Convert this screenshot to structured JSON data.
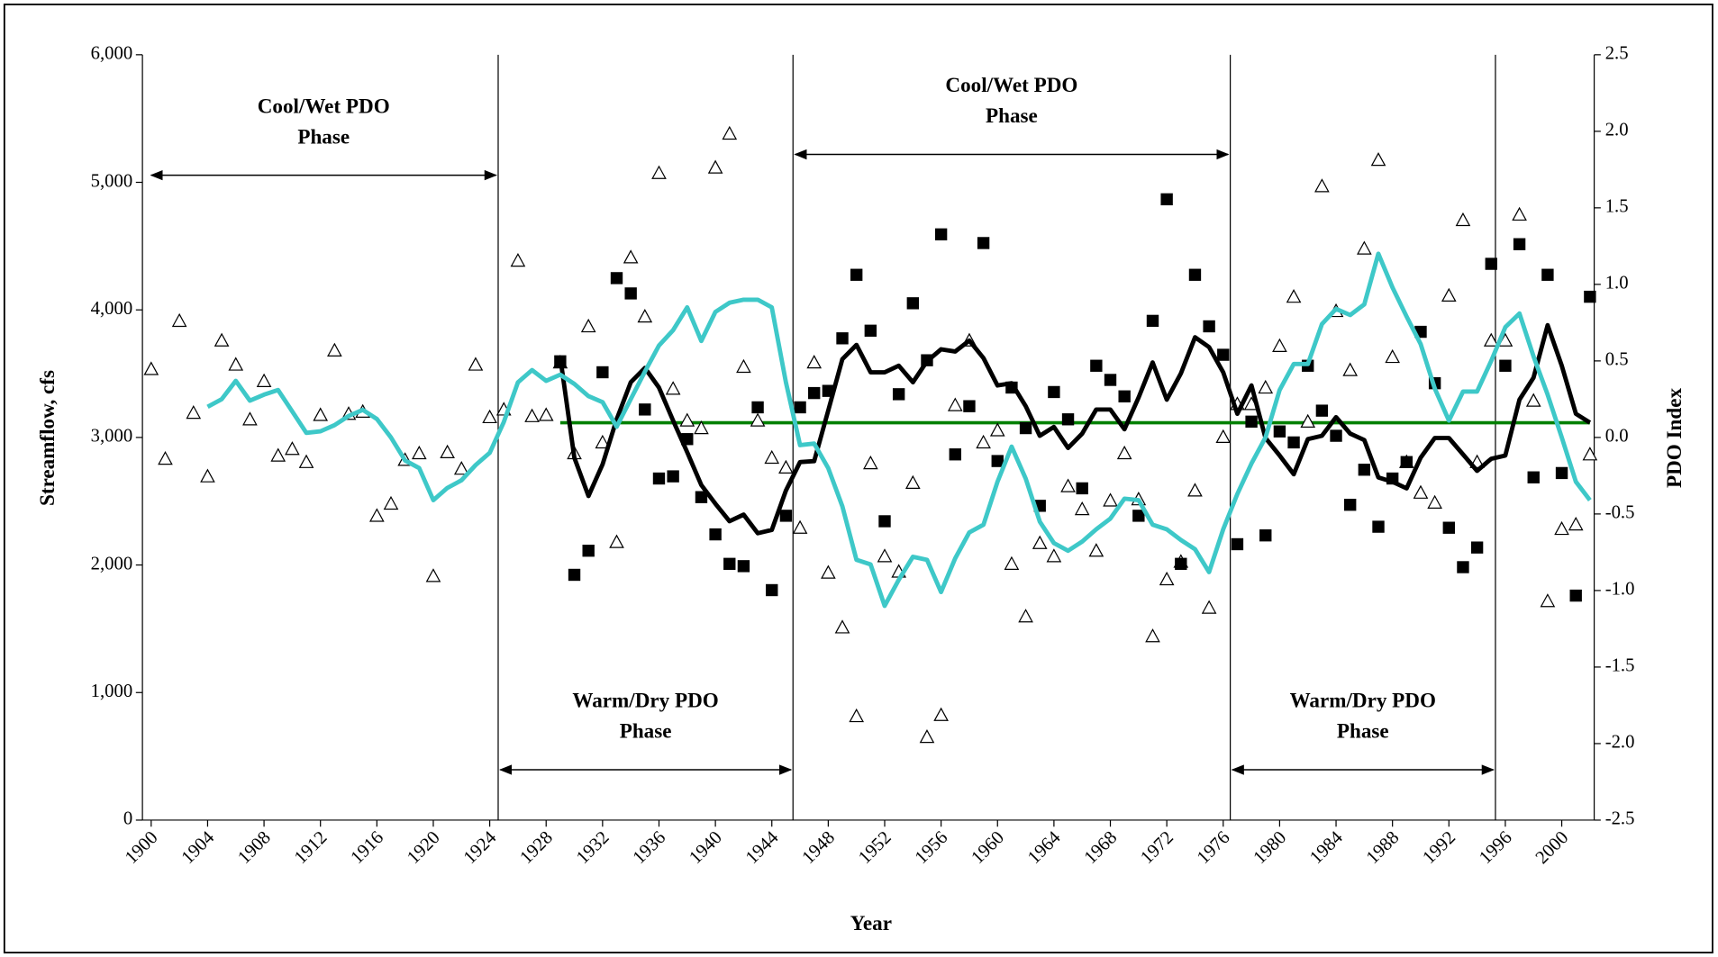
{
  "chart_data": {
    "type": "combo",
    "x_label": "Year",
    "y_label": "Streamflow, cfs",
    "y2_label": "PDO Index",
    "x": [
      1900,
      1901,
      1902,
      1903,
      1904,
      1905,
      1906,
      1907,
      1908,
      1909,
      1910,
      1911,
      1912,
      1913,
      1914,
      1915,
      1916,
      1917,
      1918,
      1919,
      1920,
      1921,
      1922,
      1923,
      1924,
      1925,
      1926,
      1927,
      1928,
      1929,
      1930,
      1931,
      1932,
      1933,
      1934,
      1935,
      1936,
      1937,
      1938,
      1939,
      1940,
      1941,
      1942,
      1943,
      1944,
      1945,
      1946,
      1947,
      1948,
      1949,
      1950,
      1951,
      1952,
      1953,
      1954,
      1955,
      1956,
      1957,
      1958,
      1959,
      1960,
      1961,
      1962,
      1963,
      1964,
      1965,
      1966,
      1967,
      1968,
      1969,
      1970,
      1971,
      1972,
      1973,
      1974,
      1975,
      1976,
      1977,
      1978,
      1979,
      1980,
      1981,
      1982,
      1983,
      1984,
      1985,
      1986,
      1987,
      1988,
      1989,
      1990,
      1991,
      1992,
      1993,
      1994,
      1995,
      1996,
      1997,
      1998,
      1999,
      2000,
      2001,
      2002
    ],
    "xlim": [
      1899.38,
      2002.3
    ],
    "xticks": [
      1900,
      1904,
      1908,
      1912,
      1916,
      1920,
      1924,
      1928,
      1932,
      1936,
      1940,
      1944,
      1948,
      1952,
      1956,
      1960,
      1964,
      1968,
      1972,
      1976,
      1980,
      1984,
      1988,
      1992,
      1996,
      2000
    ],
    "ylim": [
      0,
      6000
    ],
    "yticks": [
      0,
      {
        "value": 1000,
        "label": "1,000"
      },
      {
        "value": 2000,
        "label": "2,000"
      },
      {
        "value": 3000,
        "label": "3,000"
      },
      {
        "value": 4000,
        "label": "4,000"
      },
      {
        "value": 5000,
        "label": "5,000"
      },
      {
        "value": 6000,
        "label": "6,000"
      }
    ],
    "y2lim": [
      -2.5,
      2.5
    ],
    "y2ticks": [
      -2.5,
      {
        "value": -2,
        "label": "-2.0"
      },
      -1.5,
      {
        "value": -1,
        "label": "-1.0"
      },
      -0.5,
      {
        "value": 0,
        "label": "0.0"
      },
      0.5,
      {
        "value": 1,
        "label": "1.0"
      },
      1.5,
      {
        "value": 2,
        "label": "2.0"
      },
      2.5
    ],
    "grid": false,
    "series": [
      {
        "style": "triangle",
        "color": "#000000",
        "axis": "y",
        "values": [
          3536,
          2833,
          3914,
          3193,
          2695,
          3760,
          3571,
          3142,
          3442,
          2858,
          2910,
          2807,
          3176,
          3682,
          3185,
          3202,
          2386,
          2481,
          2824,
          2876,
          1914,
          2884,
          2755,
          3571,
          3159,
          3219,
          4386,
          3167,
          3176,
          3588,
          2876,
          3871,
          2961,
          2180,
          4412,
          3948,
          5073,
          3382,
          3133,
          3073,
          5116,
          5382,
          3554,
          3133,
          2841,
          2764,
          2292,
          3588,
          1940,
          1511,
          815,
          2798,
          2069,
          1948,
          2644,
          652,
          824,
          3253,
          3760,
          2961,
          3056,
          2009,
          1597,
          2172,
          2069,
          2618,
          2438,
          2112,
          2506,
          2876,
          2515,
          1442,
          1888,
          2026,
          2584,
          1665,
          3004,
          3262,
          3262,
          3391,
          3717,
          4103,
          3124,
          4970,
          3991,
          3528,
          4481,
          5176,
          3631,
          2807,
          2567,
          2489,
          4112,
          4704,
          2807,
          3760,
          3760,
          4747,
          3288,
          1717,
          2283,
          2318,
          2867
        ]
      },
      {
        "style": "square",
        "color": "#000000",
        "axis": "y",
        "values": [
          null,
          null,
          null,
          null,
          null,
          null,
          null,
          null,
          null,
          null,
          null,
          null,
          null,
          null,
          null,
          null,
          null,
          null,
          null,
          null,
          null,
          null,
          null,
          null,
          null,
          null,
          null,
          null,
          null,
          3597,
          1923,
          2112,
          3511,
          4249,
          4129,
          3219,
          2678,
          2695,
          2987,
          2532,
          2240,
          2009,
          1991,
          3236,
          1803,
          2386,
          3236,
          3348,
          3365,
          3777,
          4275,
          3837,
          2343,
          3339,
          4052,
          3605,
          4592,
          2867,
          3245,
          4524,
          2815,
          3391,
          3073,
          2464,
          3356,
          3142,
          2601,
          3562,
          3451,
          3322,
          2386,
          3914,
          4867,
          2009,
          4275,
          3871,
          3648,
          2163,
          3124,
          2232,
          3047,
          2961,
          3562,
          3210,
          3013,
          2472,
          2747,
          2300,
          2678,
          2807,
          3828,
          3425,
          2292,
          1983,
          2137,
          4361,
          3562,
          4515,
          2687,
          4275,
          2721,
          1760,
          4103
        ]
      },
      {
        "style": "line",
        "color": "#000000",
        "axis": "y",
        "values": [
          null,
          null,
          null,
          null,
          null,
          null,
          null,
          null,
          null,
          null,
          null,
          null,
          null,
          null,
          null,
          null,
          null,
          null,
          null,
          null,
          null,
          null,
          null,
          null,
          null,
          null,
          null,
          null,
          null,
          3631,
          2841,
          2541,
          2790,
          3142,
          3433,
          3545,
          3391,
          3133,
          2884,
          2627,
          2481,
          2343,
          2395,
          2249,
          2275,
          2584,
          2807,
          2815,
          3210,
          3614,
          3725,
          3511,
          3511,
          3562,
          3433,
          3597,
          3691,
          3674,
          3760,
          3622,
          3408,
          3425,
          3245,
          3013,
          3082,
          2918,
          3030,
          3219,
          3219,
          3064,
          3313,
          3588,
          3296,
          3502,
          3785,
          3708,
          3511,
          3185,
          3408,
          2996,
          2858,
          2712,
          2987,
          3013,
          3159,
          3030,
          2979,
          2687,
          2652,
          2601,
          2841,
          2996,
          2996,
          2867,
          2738,
          2833,
          2858,
          3296,
          3468,
          3880,
          3562,
          3185,
          3116
        ]
      },
      {
        "style": "line",
        "color": "#3ec8c8",
        "axis": "y2",
        "values": [
          null,
          null,
          null,
          null,
          0.2,
          0.25,
          0.37,
          0.24,
          0.28,
          0.31,
          0.17,
          0.03,
          0.04,
          0.08,
          0.14,
          0.18,
          0.12,
          0.0,
          -0.15,
          -0.2,
          -0.41,
          -0.33,
          -0.28,
          -0.18,
          -0.1,
          0.1,
          0.36,
          0.44,
          0.37,
          0.41,
          0.35,
          0.27,
          0.23,
          0.07,
          0.25,
          0.43,
          0.6,
          0.7,
          0.85,
          0.63,
          0.82,
          0.88,
          0.9,
          0.9,
          0.85,
          0.36,
          -0.05,
          -0.04,
          -0.2,
          -0.45,
          -0.8,
          -0.83,
          -1.1,
          -0.93,
          -0.78,
          -0.8,
          -1.01,
          -0.79,
          -0.62,
          -0.57,
          -0.29,
          -0.06,
          -0.27,
          -0.55,
          -0.69,
          -0.74,
          -0.68,
          -0.6,
          -0.53,
          -0.4,
          -0.41,
          -0.57,
          -0.6,
          -0.67,
          -0.73,
          -0.88,
          -0.6,
          -0.37,
          -0.17,
          0.0,
          0.31,
          0.48,
          0.48,
          0.74,
          0.84,
          0.8,
          0.87,
          1.2,
          0.98,
          0.79,
          0.61,
          0.32,
          0.11,
          0.3,
          0.3,
          0.5,
          0.72,
          0.81,
          0.53,
          0.28,
          0.0,
          -0.29,
          -0.41
        ]
      }
    ],
    "mean_line": {
      "value": 3115,
      "from": 1929,
      "to": 2002,
      "color": "#008000"
    },
    "phases": [
      {
        "label": "Cool/Wet PDO Phase",
        "start": 1899.85,
        "end": 1924.6,
        "position": "top"
      },
      {
        "label": "Warm/Dry PDO Phase",
        "start": 1924.6,
        "end": 1945.5,
        "position": "bottom"
      },
      {
        "label": "Cool/Wet PDO Phase",
        "start": 1945.5,
        "end": 1976.5,
        "position": "top"
      },
      {
        "label": "Warm/Dry PDO Phase",
        "start": 1976.5,
        "end": 1995.3,
        "position": "bottom"
      }
    ]
  }
}
